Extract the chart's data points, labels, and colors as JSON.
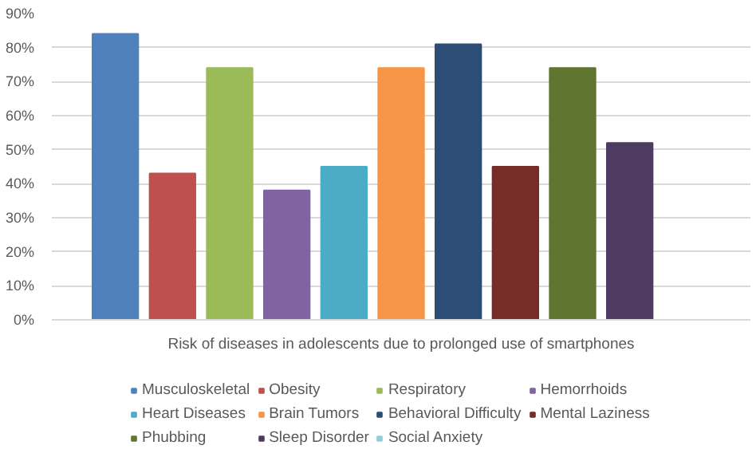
{
  "chart_data": {
    "type": "bar",
    "xlabel": "Risk of diseases in adolescents due to prolonged use of smartphones",
    "categories": [
      null
    ],
    "series": [
      {
        "name": "Musculoskeletal",
        "color": "#4f81bd",
        "values": [
          84
        ]
      },
      {
        "name": "Obesity",
        "color": "#c0504d",
        "values": [
          43
        ]
      },
      {
        "name": "Respiratory",
        "color": "#9bbb59",
        "values": [
          74
        ]
      },
      {
        "name": "Hemorrhoids",
        "color": "#8064a2",
        "values": [
          38
        ]
      },
      {
        "name": "Heart Diseases",
        "color": "#4bacc6",
        "values": [
          45
        ]
      },
      {
        "name": "Brain Tumors",
        "color": "#f79646",
        "values": [
          74
        ]
      },
      {
        "name": "Behavioral Difficulty",
        "color": "#2c4d75",
        "values": [
          81
        ]
      },
      {
        "name": "Mental Laziness",
        "color": "#772c2a",
        "values": [
          45
        ]
      },
      {
        "name": "Phubbing",
        "color": "#5f7530",
        "values": [
          74
        ]
      },
      {
        "name": "Sleep Disorder",
        "color": "#4d3b62",
        "values": [
          52
        ]
      },
      {
        "name": "Social Anxiety",
        "color": "#93cddd",
        "values": [
          null
        ]
      }
    ],
    "ylim": [
      0,
      90
    ],
    "yticks": [
      {
        "value": 0,
        "label": "0%"
      },
      {
        "value": 10,
        "label": "10%"
      },
      {
        "value": 20,
        "label": "20%"
      },
      {
        "value": 30,
        "label": "30%"
      },
      {
        "value": 40,
        "label": "40%"
      },
      {
        "value": 50,
        "label": "50%"
      },
      {
        "value": 60,
        "label": "60%"
      },
      {
        "value": 70,
        "label": "70%"
      },
      {
        "value": 80,
        "label": "80%"
      },
      {
        "value": 90,
        "label": "90%"
      }
    ],
    "grid": "y",
    "legend": "bottom"
  }
}
